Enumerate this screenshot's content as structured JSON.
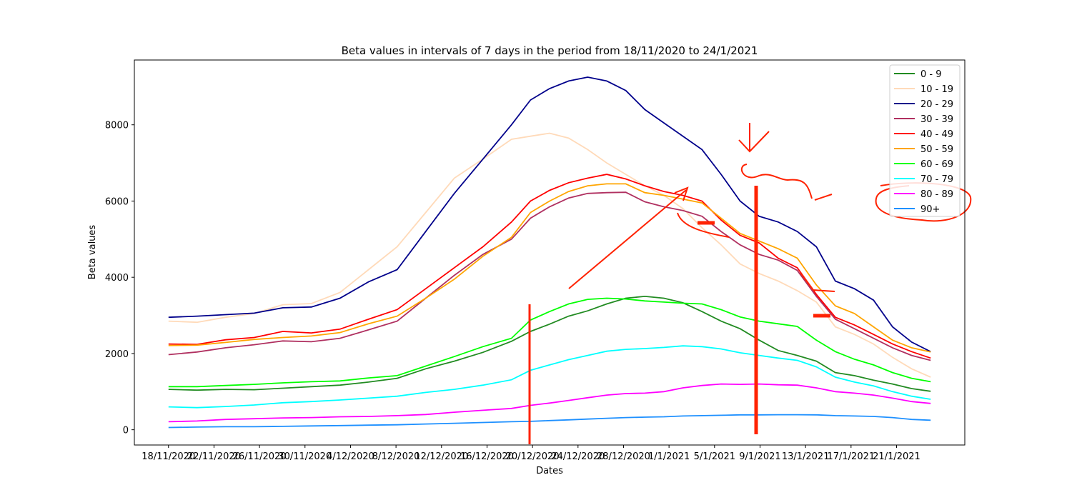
{
  "chart_data": {
    "type": "line",
    "title": "Beta values in intervals of 7 days in the period from 18/11/2020 to 24/1/2021",
    "xlabel": "Dates",
    "ylabel": "Beta values",
    "ylim": [
      -400,
      9700
    ],
    "yticks": [
      0,
      2000,
      4000,
      6000,
      8000
    ],
    "xticks": [
      "18/11/2020",
      "22/11/2020",
      "26/11/2020",
      "30/11/2020",
      "4/12/2020",
      "8/12/2020",
      "12/12/2020",
      "16/12/2020",
      "20/12/2020",
      "24/12/2020",
      "28/12/2020",
      "1/1/2021",
      "5/1/2021",
      "9/1/2021",
      "13/1/2021",
      "17/1/2021",
      "21/1/2021"
    ],
    "x_index_range": [
      -3,
      70
    ],
    "grid": false,
    "legend_position": "top-right",
    "x": [
      0,
      3,
      6,
      9,
      12,
      15,
      18,
      21,
      24,
      27,
      30,
      33,
      36,
      38,
      40,
      42,
      44,
      46,
      48,
      50,
      52,
      54,
      56,
      58,
      60,
      62,
      64,
      66
    ],
    "series": [
      {
        "name": "0 - 9",
        "color": "#228b22",
        "values": [
          1060,
          1040,
          1060,
          1050,
          1090,
          1130,
          1170,
          1250,
          1350,
          1600,
          1800,
          2030,
          2320,
          2580,
          2770,
          2980,
          3120,
          3300,
          3450,
          3500,
          3450,
          3330,
          3100,
          2850,
          2650,
          2350,
          2080,
          1950
        ]
      },
      {
        "name": "10 - 19",
        "color": "#ffdab9",
        "values": [
          2850,
          2820,
          2950,
          3050,
          3280,
          3310,
          3600,
          4200,
          4800,
          5700,
          6600,
          7100,
          7620,
          7700,
          7780,
          7650,
          7350,
          7000,
          6700,
          6400,
          6150,
          5800,
          5300,
          4850,
          4350,
          4100,
          3900,
          3650
        ]
      },
      {
        "name": "20 - 29",
        "color": "#00008b",
        "values": [
          2950,
          2980,
          3020,
          3060,
          3200,
          3220,
          3450,
          3880,
          4200,
          5200,
          6200,
          7100,
          8000,
          8650,
          8950,
          9150,
          9250,
          9150,
          8900,
          8400,
          8050,
          7700,
          7350,
          6700,
          6000,
          5600,
          5450,
          5200
        ]
      },
      {
        "name": "30 - 39",
        "color": "#b03060",
        "values": [
          1970,
          2040,
          2150,
          2230,
          2330,
          2310,
          2400,
          2620,
          2850,
          3450,
          4050,
          4600,
          5000,
          5550,
          5850,
          6080,
          6200,
          6220,
          6230,
          5980,
          5850,
          5750,
          5600,
          5200,
          4850,
          4600,
          4450,
          4180
        ]
      },
      {
        "name": "40 - 49",
        "color": "#ff0000",
        "values": [
          2250,
          2240,
          2360,
          2420,
          2580,
          2540,
          2640,
          2900,
          3150,
          3700,
          4250,
          4800,
          5450,
          6000,
          6280,
          6480,
          6600,
          6700,
          6580,
          6400,
          6250,
          6150,
          6000,
          5500,
          5100,
          4900,
          4500,
          4250
        ]
      },
      {
        "name": "50 - 59",
        "color": "#ffa500",
        "values": [
          2210,
          2220,
          2290,
          2370,
          2420,
          2460,
          2550,
          2780,
          2980,
          3450,
          3950,
          4550,
          5050,
          5700,
          6000,
          6250,
          6400,
          6450,
          6450,
          6220,
          6150,
          6050,
          5950,
          5550,
          5150,
          4950,
          4750,
          4500
        ]
      },
      {
        "name": "60 - 69",
        "color": "#00ff00",
        "values": [
          1130,
          1130,
          1160,
          1190,
          1230,
          1260,
          1280,
          1360,
          1420,
          1670,
          1920,
          2180,
          2400,
          2880,
          3100,
          3300,
          3420,
          3450,
          3430,
          3380,
          3350,
          3320,
          3300,
          3150,
          2960,
          2850,
          2780,
          2710
        ]
      },
      {
        "name": "70 - 79",
        "color": "#00ffff",
        "values": [
          600,
          580,
          610,
          650,
          710,
          740,
          780,
          830,
          880,
          980,
          1060,
          1170,
          1310,
          1560,
          1700,
          1840,
          1950,
          2060,
          2110,
          2130,
          2160,
          2200,
          2180,
          2120,
          2020,
          1950,
          1880,
          1820
        ]
      },
      {
        "name": "80 - 89",
        "color": "#ff00ff",
        "values": [
          210,
          230,
          270,
          290,
          310,
          320,
          340,
          350,
          370,
          400,
          460,
          510,
          560,
          640,
          700,
          770,
          840,
          910,
          950,
          960,
          1000,
          1100,
          1160,
          1200,
          1190,
          1200,
          1180,
          1170
        ]
      },
      {
        "name": "90+",
        "color": "#1e90ff",
        "values": [
          60,
          70,
          80,
          80,
          90,
          100,
          110,
          120,
          130,
          150,
          170,
          190,
          210,
          220,
          240,
          260,
          280,
          300,
          320,
          330,
          340,
          360,
          370,
          380,
          390,
          390,
          395,
          395
        ]
      }
    ],
    "tail": {
      "x": [
        68,
        70,
        72,
        74,
        76,
        78,
        80
      ],
      "values": {
        "0 - 9": [
          1800,
          1500,
          1420,
          1300,
          1200,
          1080,
          1010
        ],
        "10 - 19": [
          3350,
          2700,
          2500,
          2250,
          1900,
          1600,
          1380
        ],
        "20 - 29": [
          4800,
          3900,
          3700,
          3400,
          2700,
          2300,
          2050
        ],
        "30 - 39": [
          3500,
          2900,
          2650,
          2400,
          2150,
          1950,
          1820
        ],
        "40 - 49": [
          3550,
          2950,
          2750,
          2500,
          2250,
          2050,
          1880
        ],
        "50 - 59": [
          3800,
          3250,
          3050,
          2700,
          2350,
          2150,
          2040
        ],
        "60 - 69": [
          2350,
          2050,
          1850,
          1700,
          1500,
          1350,
          1260
        ],
        "70 - 79": [
          1650,
          1380,
          1250,
          1150,
          1000,
          880,
          800
        ],
        "80 - 89": [
          1100,
          1000,
          960,
          910,
          830,
          740,
          690
        ],
        "90+": [
          390,
          370,
          360,
          350,
          320,
          270,
          250
        ]
      }
    }
  }
}
